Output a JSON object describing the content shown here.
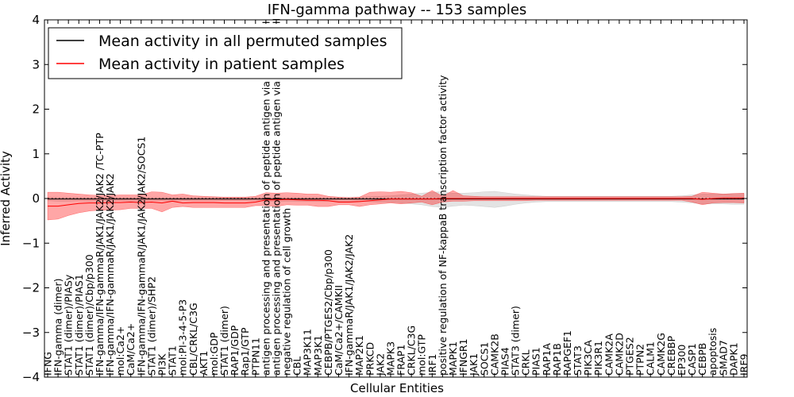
{
  "chart_data": {
    "type": "line",
    "title": "IFN-gamma pathway -- 153 samples",
    "xlabel": "Cellular Entities",
    "ylabel": "Inferred Activity",
    "ylim": [
      -4,
      4
    ],
    "yticks": [
      "−4",
      "−3",
      "−2",
      "−1",
      "0",
      "1",
      "2",
      "3",
      "4"
    ],
    "legend": {
      "position": "top-left",
      "entries": [
        {
          "name": "Mean activity in all permuted samples",
          "color": "#000000"
        },
        {
          "name": "Mean activity in patient samples",
          "color": "#ff0000"
        }
      ]
    },
    "categories": [
      "IFNG",
      "IFN-gamma (dimer)",
      "STAT1 (dimer)/PIASy",
      "STAT1 (dimer)/PIAS1",
      "STAT1 (dimer)/Cbp/p300",
      "IFN-gamma/IFN-gammaR/JAK1/JAK2/JAK2 /TC-PTP",
      "IFN-gamma/IFN-gammaR/JAK1/JAK2/JAK2",
      "mol:Ca2+",
      "CaM/Ca2+",
      "IFN-gamma/IFN-gammaR/JAK1/JAK2/JAK2/SOCS1",
      "STAT1 (dimer)/SHP2",
      "PI3K",
      "STAT1",
      "mol:PI-3-4-5-P3",
      "CBL/CRKL/C3G",
      "AKT1",
      "mol:GDP",
      "STAT1 (dimer)",
      "RAP1/GDP",
      "Rap1/GTP",
      "PTPN11",
      "antigen processing and presentation of peptide antigen via MHC class I",
      "antigen processing and presentation of peptide antigen via MHC class II",
      "negative regulation of cell growth",
      "CBL",
      "MAP3K11",
      "MAP3K1",
      "CEBPB/PTGES2/Cbp/p300",
      "CaM/Ca2+/CAMKII",
      "IFN-gammaR/JAK1/JAK2/JAK2",
      "MAP2K1",
      "PRKCD",
      "JAK2",
      "MAPK3",
      "FRAP1",
      "CRKL/C3G",
      "mol:GTP",
      "IRF1",
      "positive regulation of NF-kappaB transcription factor activity",
      "MAPK1",
      "IFNGR1",
      "JAK1",
      "SOCS1",
      "CAMK2B",
      "PIAS4",
      "STAT3 (dimer)",
      "CRKL",
      "PIAS1",
      "RAP1A",
      "RAP1B",
      "RAPGEF1",
      "STAT3",
      "PIK3CA",
      "PIK3R1",
      "CAMK2A",
      "CAMK2D",
      "PTGES2",
      "PTPN2",
      "CALM1",
      "CAMK2G",
      "CREBBP",
      "EP300",
      "CASP1",
      "CEBPB",
      "apoptosis",
      "SMAD7",
      "DAPK1",
      "IRF9"
    ],
    "series": [
      {
        "name": "Mean activity in all permuted samples",
        "color": "#000000",
        "values": [
          -0.01,
          -0.01,
          -0.01,
          -0.01,
          -0.01,
          -0.01,
          -0.01,
          -0.01,
          -0.01,
          -0.01,
          -0.01,
          -0.01,
          -0.01,
          -0.01,
          -0.01,
          -0.01,
          -0.01,
          -0.01,
          -0.01,
          -0.01,
          -0.01,
          -0.01,
          -0.01,
          -0.01,
          -0.01,
          -0.01,
          -0.01,
          -0.01,
          -0.01,
          -0.01,
          -0.01,
          -0.01,
          -0.01,
          -0.01,
          -0.01,
          -0.01,
          -0.01,
          -0.01,
          -0.01,
          -0.01,
          -0.01,
          -0.01,
          -0.01,
          -0.01,
          -0.01,
          -0.01,
          -0.01,
          -0.01,
          -0.01,
          -0.01,
          -0.01,
          -0.01,
          -0.01,
          -0.01,
          -0.01,
          -0.01,
          -0.01,
          -0.01,
          -0.01,
          -0.01,
          -0.01,
          -0.01,
          -0.01,
          -0.01,
          -0.01,
          -0.01,
          -0.01,
          -0.01
        ],
        "band_lower": [
          -0.05,
          -0.06,
          -0.06,
          -0.05,
          -0.06,
          -0.05,
          -0.05,
          -0.05,
          -0.06,
          -0.05,
          -0.05,
          -0.05,
          -0.06,
          -0.05,
          -0.05,
          -0.05,
          -0.05,
          -0.05,
          -0.05,
          -0.05,
          -0.05,
          -0.06,
          -0.06,
          -0.06,
          -0.06,
          -0.06,
          -0.06,
          -0.06,
          -0.06,
          -0.06,
          -0.06,
          -0.07,
          -0.08,
          -0.08,
          -0.1,
          -0.12,
          -0.14,
          -0.18,
          -0.2,
          -0.17,
          -0.15,
          -0.16,
          -0.18,
          -0.2,
          -0.17,
          -0.13,
          -0.1,
          -0.08,
          -0.07,
          -0.07,
          -0.07,
          -0.07,
          -0.07,
          -0.07,
          -0.07,
          -0.07,
          -0.07,
          -0.07,
          -0.07,
          -0.07,
          -0.07,
          -0.08,
          -0.1,
          -0.12,
          -0.12,
          -0.12,
          -0.13,
          -0.13
        ],
        "band_upper": [
          0.03,
          0.02,
          0.02,
          0.02,
          0.02,
          0.02,
          0.02,
          0.02,
          0.02,
          0.02,
          0.02,
          0.02,
          0.02,
          0.02,
          0.02,
          0.02,
          0.02,
          0.02,
          0.02,
          0.02,
          0.02,
          0.02,
          0.02,
          0.02,
          0.02,
          0.02,
          0.02,
          0.02,
          0.02,
          0.02,
          0.03,
          0.04,
          0.05,
          0.06,
          0.08,
          0.1,
          0.12,
          0.14,
          0.15,
          0.12,
          0.12,
          0.13,
          0.15,
          0.16,
          0.13,
          0.1,
          0.08,
          0.06,
          0.05,
          0.05,
          0.05,
          0.05,
          0.05,
          0.05,
          0.05,
          0.05,
          0.05,
          0.05,
          0.05,
          0.05,
          0.05,
          0.06,
          0.08,
          0.1,
          0.1,
          0.1,
          0.11,
          0.11
        ]
      },
      {
        "name": "Mean activity in patient samples",
        "color": "#ff0000",
        "values": [
          -0.17,
          -0.17,
          -0.14,
          -0.11,
          -0.1,
          -0.1,
          -0.09,
          -0.09,
          -0.08,
          -0.09,
          -0.08,
          -0.1,
          -0.06,
          -0.1,
          -0.09,
          -0.09,
          -0.09,
          -0.1,
          -0.1,
          -0.1,
          -0.08,
          -0.03,
          -0.03,
          -0.02,
          -0.03,
          -0.04,
          -0.04,
          -0.05,
          -0.08,
          -0.08,
          -0.07,
          -0.05,
          -0.03,
          -0.01,
          -0.01,
          -0.01,
          -0.01,
          -0.01,
          0.0,
          0.0,
          0.0,
          0.0,
          0.0,
          0.0,
          0.0,
          0.0,
          0.0,
          0.0,
          0.0,
          0.0,
          0.0,
          0.0,
          0.0,
          0.0,
          0.0,
          0.0,
          0.0,
          0.0,
          0.0,
          0.0,
          0.0,
          0.0,
          0.0,
          -0.02,
          0.0,
          0.01,
          0.01,
          0.01
        ],
        "band_lower": [
          -0.48,
          -0.46,
          -0.38,
          -0.32,
          -0.28,
          -0.26,
          -0.26,
          -0.25,
          -0.22,
          -0.22,
          -0.22,
          -0.3,
          -0.2,
          -0.18,
          -0.2,
          -0.2,
          -0.2,
          -0.2,
          -0.2,
          -0.2,
          -0.16,
          -0.16,
          -0.18,
          -0.14,
          -0.15,
          -0.15,
          -0.18,
          -0.18,
          -0.14,
          -0.14,
          -0.18,
          -0.14,
          -0.12,
          -0.1,
          -0.12,
          -0.1,
          -0.08,
          -0.14,
          -0.08,
          -0.06,
          -0.06,
          -0.05,
          -0.05,
          -0.05,
          -0.05,
          -0.05,
          -0.05,
          -0.04,
          -0.04,
          -0.04,
          -0.04,
          -0.04,
          -0.04,
          -0.04,
          -0.04,
          -0.04,
          -0.04,
          -0.04,
          -0.04,
          -0.04,
          -0.04,
          -0.04,
          -0.08,
          -0.14,
          -0.1,
          -0.09,
          -0.09,
          -0.1
        ],
        "band_upper": [
          0.14,
          0.14,
          0.12,
          0.1,
          0.08,
          0.07,
          0.07,
          0.08,
          0.08,
          0.08,
          0.15,
          0.14,
          0.08,
          0.1,
          0.06,
          0.05,
          0.04,
          0.03,
          0.03,
          0.03,
          0.05,
          0.13,
          0.12,
          0.13,
          0.12,
          0.1,
          0.1,
          0.05,
          0.03,
          0.02,
          0.03,
          0.14,
          0.15,
          0.14,
          0.16,
          0.13,
          0.05,
          0.18,
          0.05,
          0.18,
          0.06,
          0.05,
          0.04,
          0.04,
          0.04,
          0.04,
          0.04,
          0.04,
          0.04,
          0.04,
          0.04,
          0.04,
          0.04,
          0.04,
          0.04,
          0.04,
          0.04,
          0.04,
          0.04,
          0.04,
          0.04,
          0.04,
          0.05,
          0.14,
          0.12,
          0.1,
          0.11,
          0.12
        ]
      }
    ]
  }
}
